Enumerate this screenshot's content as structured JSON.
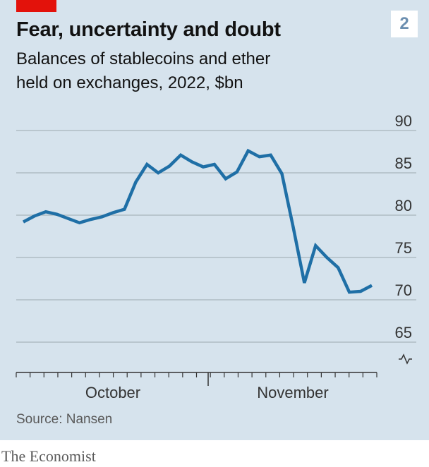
{
  "header": {
    "title": "Fear, uncertainty and doubt",
    "chart_number": "2",
    "subtitle_line1": "Balances of stablecoins and ether",
    "subtitle_line2": "held on exchanges, 2022, $bn"
  },
  "source": "Source: Nansen",
  "footer": "The Economist",
  "colors": {
    "background": "#d6e3ed",
    "line": "#1f6fa6",
    "accent_tag": "#e3120b",
    "grid": "#a8b4bd"
  },
  "chart_data": {
    "type": "line",
    "title": "Fear, uncertainty and doubt",
    "subtitle": "Balances of stablecoins and ether held on exchanges, 2022, $bn",
    "x_tick_labels": [
      "October",
      "November"
    ],
    "y_ticks": [
      90,
      85,
      80,
      75,
      70,
      65
    ],
    "ylim": [
      62.5,
      90
    ],
    "y_axis_broken": true,
    "grid": true,
    "series": [
      {
        "values": [
          79.2,
          79.9,
          80.4,
          80.1,
          79.6,
          79.1,
          79.5,
          79.8,
          80.3,
          80.7,
          83.9,
          86.0,
          85.0,
          85.8,
          87.1,
          86.3,
          85.7,
          86.0,
          84.3,
          85.1,
          87.6,
          86.9,
          87.1,
          84.9,
          78.6,
          72.0,
          76.4,
          75.0,
          73.8,
          70.9,
          71.0,
          71.7
        ]
      }
    ]
  }
}
